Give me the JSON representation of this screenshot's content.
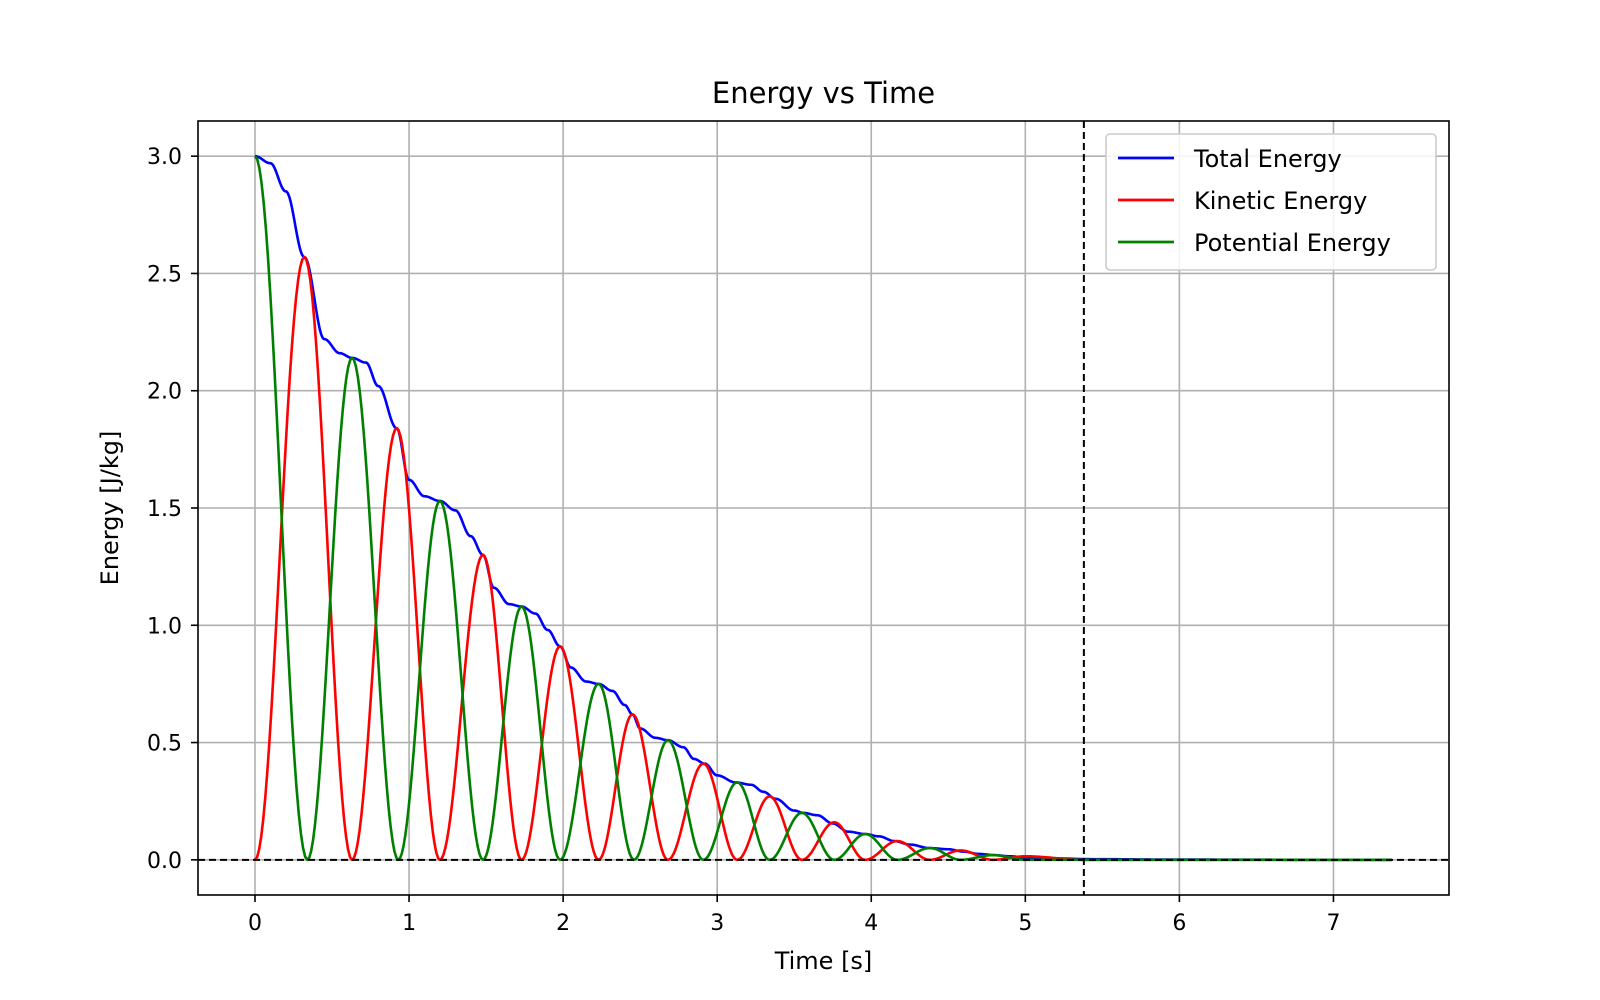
{
  "chart_data": {
    "type": "line",
    "title": "Energy vs Time",
    "xlabel": "Time [s]",
    "ylabel": "Energy [J/kg]",
    "xlim": [
      -0.37,
      7.75
    ],
    "ylim": [
      -0.15,
      3.15
    ],
    "xticks": [
      0,
      1,
      2,
      3,
      4,
      5,
      6,
      7
    ],
    "yticks": [
      0.0,
      0.5,
      1.0,
      1.5,
      2.0,
      2.5,
      3.0
    ],
    "xtick_labels": [
      "0",
      "1",
      "2",
      "3",
      "4",
      "5",
      "6",
      "7"
    ],
    "ytick_labels": [
      "0.0",
      "0.5",
      "1.0",
      "1.5",
      "2.0",
      "2.5",
      "3.0"
    ],
    "grid": true,
    "legend_position": "top-right",
    "reference_lines": [
      {
        "orientation": "horizontal",
        "value": 0.0,
        "style": "dashed",
        "color": "#000000"
      },
      {
        "orientation": "vertical",
        "value": 5.38,
        "style": "dashed",
        "color": "#000000"
      }
    ],
    "series": [
      {
        "name": "Total Energy",
        "color": "#0000ff",
        "x": [
          0,
          0.1,
          0.2,
          0.32,
          0.45,
          0.55,
          0.63,
          0.72,
          0.8,
          0.92,
          1.0,
          1.1,
          1.2,
          1.3,
          1.4,
          1.48,
          1.55,
          1.65,
          1.73,
          1.82,
          1.9,
          1.98,
          2.05,
          2.15,
          2.23,
          2.32,
          2.4,
          2.45,
          2.5,
          2.6,
          2.68,
          2.78,
          2.85,
          2.92,
          3.0,
          3.12,
          3.22,
          3.3,
          3.38,
          3.5,
          3.56,
          3.65,
          3.75,
          3.85,
          3.96,
          4.05,
          4.15,
          4.25,
          4.38,
          4.5,
          4.6,
          4.7,
          4.8,
          4.9,
          5.0,
          5.2,
          5.4,
          6.0,
          7.0,
          7.38
        ],
        "y": [
          3.0,
          2.97,
          2.85,
          2.57,
          2.22,
          2.16,
          2.14,
          2.12,
          2.02,
          1.84,
          1.62,
          1.55,
          1.53,
          1.49,
          1.38,
          1.3,
          1.16,
          1.09,
          1.08,
          1.05,
          0.98,
          0.91,
          0.82,
          0.76,
          0.75,
          0.72,
          0.66,
          0.62,
          0.56,
          0.52,
          0.51,
          0.48,
          0.43,
          0.41,
          0.36,
          0.33,
          0.32,
          0.29,
          0.26,
          0.21,
          0.2,
          0.19,
          0.155,
          0.12,
          0.11,
          0.1,
          0.08,
          0.065,
          0.05,
          0.045,
          0.035,
          0.025,
          0.02,
          0.015,
          0.01,
          0.006,
          0.003,
          0.001,
          0.0,
          0.0
        ]
      },
      {
        "name": "Kinetic Energy",
        "color": "#ff0000",
        "x": [
          0,
          0.32,
          0.63,
          0.92,
          1.2,
          1.48,
          1.73,
          1.98,
          2.23,
          2.45,
          2.68,
          2.91,
          3.13,
          3.34,
          3.55,
          3.76,
          3.96,
          4.17,
          4.38,
          4.58,
          4.79,
          5.0,
          5.38,
          7.38
        ],
        "y": [
          0.0,
          2.57,
          0.0,
          1.84,
          0.0,
          1.3,
          0.0,
          0.91,
          0.0,
          0.62,
          0.0,
          0.41,
          0.0,
          0.27,
          0.0,
          0.16,
          0.0,
          0.08,
          0.0,
          0.04,
          0.0,
          0.015,
          0.0,
          0.0
        ]
      },
      {
        "name": "Potential Energy",
        "color": "#008000",
        "x": [
          0,
          0.34,
          0.63,
          0.93,
          1.2,
          1.48,
          1.73,
          1.98,
          2.23,
          2.46,
          2.68,
          2.91,
          3.13,
          3.34,
          3.55,
          3.76,
          3.96,
          4.17,
          4.38,
          4.58,
          4.79,
          5.0,
          5.38,
          7.38
        ],
        "y": [
          3.0,
          0.0,
          2.14,
          0.0,
          1.53,
          0.0,
          1.08,
          0.0,
          0.75,
          0.0,
          0.51,
          0.0,
          0.33,
          0.0,
          0.2,
          0.0,
          0.11,
          0.0,
          0.05,
          0.0,
          0.02,
          0.0,
          0.0,
          0.0
        ]
      }
    ]
  }
}
